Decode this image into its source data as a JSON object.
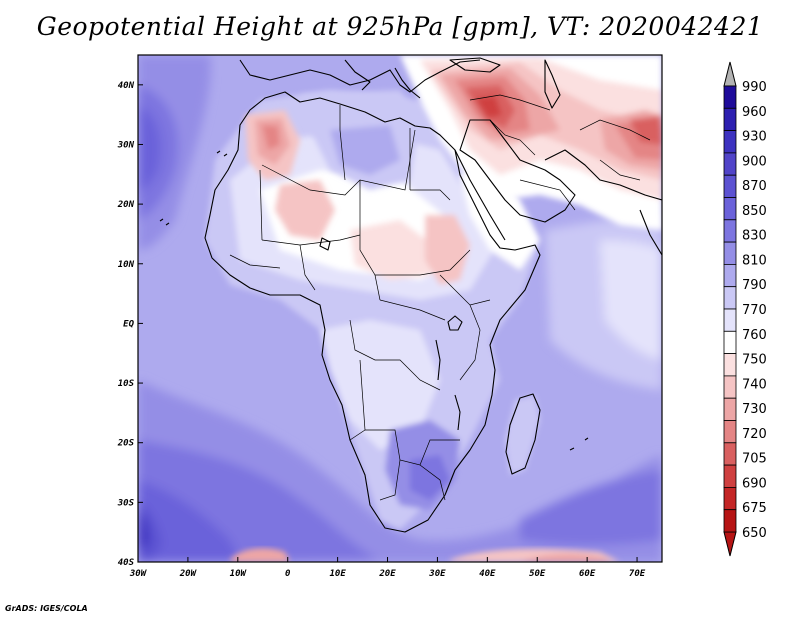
{
  "title": "Geopotential Height at 925hPa [gpm], VT: 2020042421",
  "credit": "GrADS: IGES/COLA",
  "map": {
    "variable": "Geopotential Height",
    "level": "925hPa",
    "units": "gpm",
    "valid_time": "2020042421",
    "region": "Africa and Middle East",
    "lon_range": [
      -30,
      75
    ],
    "lat_range": [
      -40,
      45
    ],
    "x_ticks": [
      "30W",
      "20W",
      "10W",
      "0",
      "10E",
      "20E",
      "30E",
      "40E",
      "50E",
      "60E",
      "70E"
    ],
    "y_ticks": [
      "40S",
      "30S",
      "20S",
      "10S",
      "EQ",
      "10N",
      "20N",
      "30N",
      "40N"
    ],
    "x_tick_values": [
      -30,
      -20,
      -10,
      0,
      10,
      20,
      30,
      40,
      50,
      60,
      70
    ],
    "y_tick_values": [
      -40,
      -30,
      -20,
      -10,
      0,
      10,
      20,
      30,
      40
    ]
  },
  "colorbar": {
    "levels": [
      "990",
      "960",
      "930",
      "900",
      "870",
      "850",
      "830",
      "810",
      "790",
      "770",
      "760",
      "750",
      "740",
      "730",
      "720",
      "705",
      "690",
      "675",
      "650"
    ],
    "colors": [
      "#1e0b9a",
      "#2d1fb0",
      "#3d32c0",
      "#5144c9",
      "#5c52d2",
      "#6b62da",
      "#7d75e0",
      "#948ee6",
      "#aeaaee",
      "#cac8f5",
      "#e4e3fb",
      "#ffffff",
      "#fbe0e0",
      "#f5c4c4",
      "#eda6a6",
      "#e48585",
      "#d96060",
      "#cf4040",
      "#c42626",
      "#b61414"
    ],
    "over_color": "#b3b3b3"
  },
  "colors": {
    "ocean_main": "#aeaaee",
    "ocean_deep": "#948ee6",
    "ocean_deeper": "#7d75e0",
    "ocean_deepest": "#5c52d2",
    "land_pale": "#cac8f5",
    "land_paler": "#e4e3fb",
    "land_white": "#ffffff",
    "warm_1": "#fbe0e0",
    "warm_2": "#f5c4c4",
    "warm_3": "#eda6a6",
    "warm_4": "#e48585",
    "warm_5": "#d96060",
    "warm_6": "#cf4040"
  }
}
